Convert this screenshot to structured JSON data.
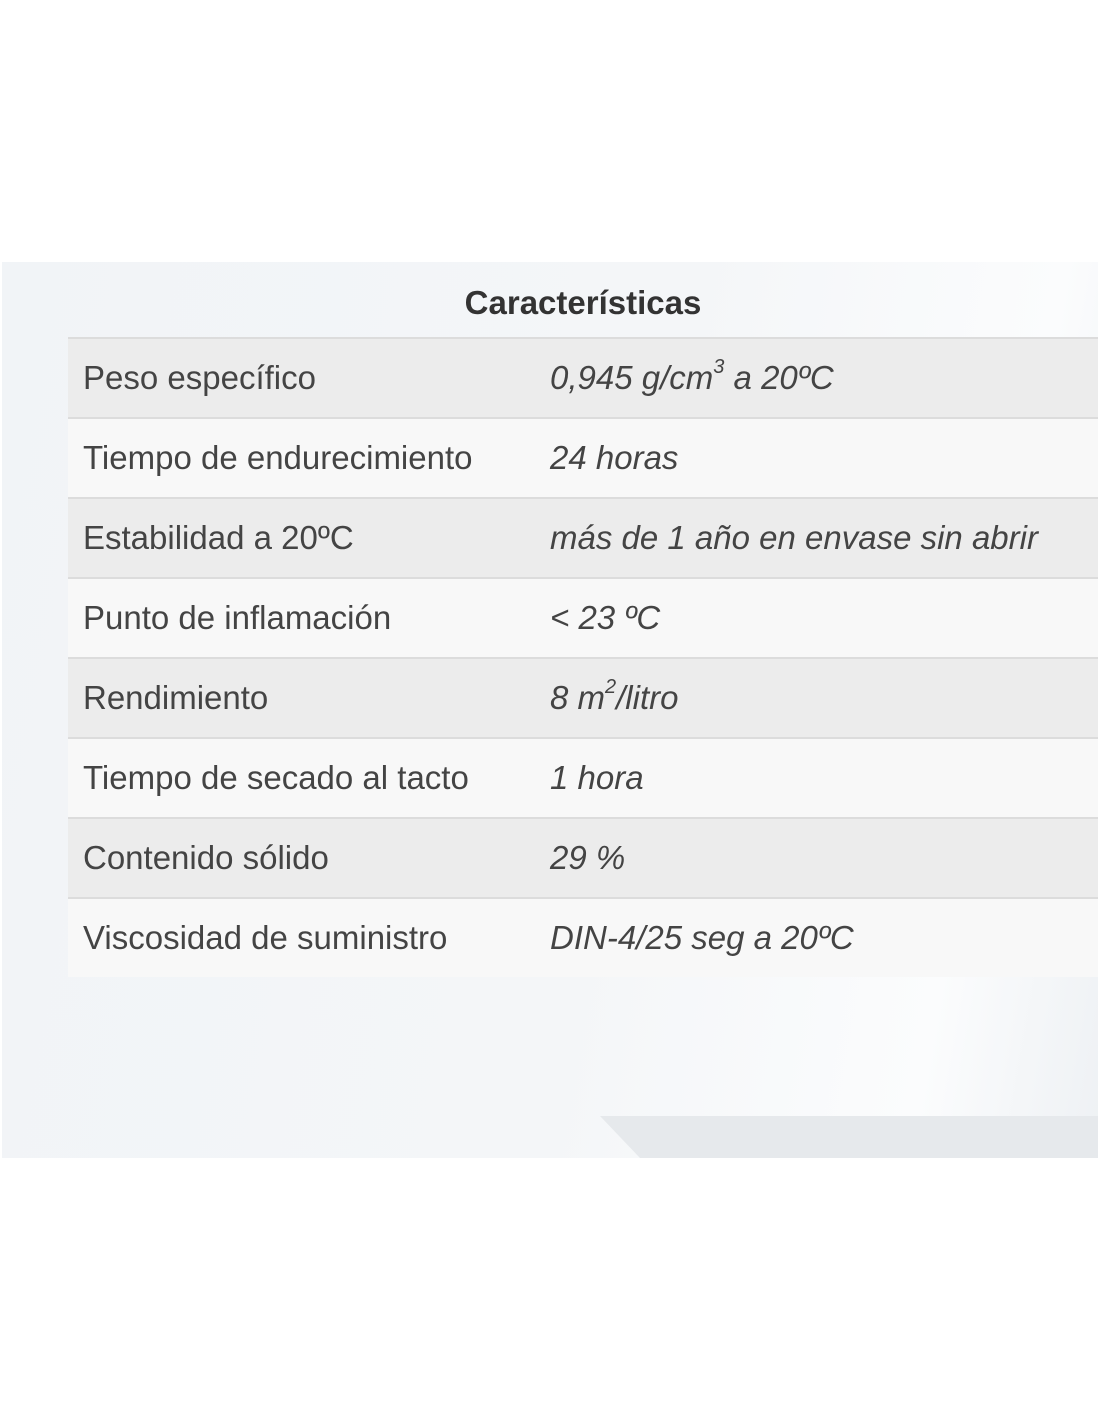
{
  "table": {
    "caption": "Características",
    "rows": [
      {
        "label": "Peso específico",
        "value": {
          "pre": "0,945 g/cm",
          "sup": "3",
          "post": " a 20ºC"
        }
      },
      {
        "label": "Tiempo de endurecimiento",
        "value": {
          "pre": "24 horas",
          "sup": "",
          "post": ""
        }
      },
      {
        "label": "Estabilidad a 20ºC",
        "value": {
          "pre": "más de 1 año en envase sin abrir",
          "sup": "",
          "post": ""
        }
      },
      {
        "label": "Punto de inflamación",
        "value": {
          "pre": "< 23 ºC",
          "sup": "",
          "post": ""
        }
      },
      {
        "label": "Rendimiento",
        "value": {
          "pre": "8 m",
          "sup": "2",
          "post": "/litro"
        }
      },
      {
        "label": "Tiempo de secado al tacto",
        "value": {
          "pre": "1 hora",
          "sup": "",
          "post": ""
        }
      },
      {
        "label": "Contenido sólido",
        "value": {
          "pre": "29 %",
          "sup": "",
          "post": ""
        }
      },
      {
        "label": "Viscosidad de suministro",
        "value": {
          "pre": "DIN-4/25 seg a 20ºC",
          "sup": "",
          "post": ""
        }
      }
    ]
  }
}
